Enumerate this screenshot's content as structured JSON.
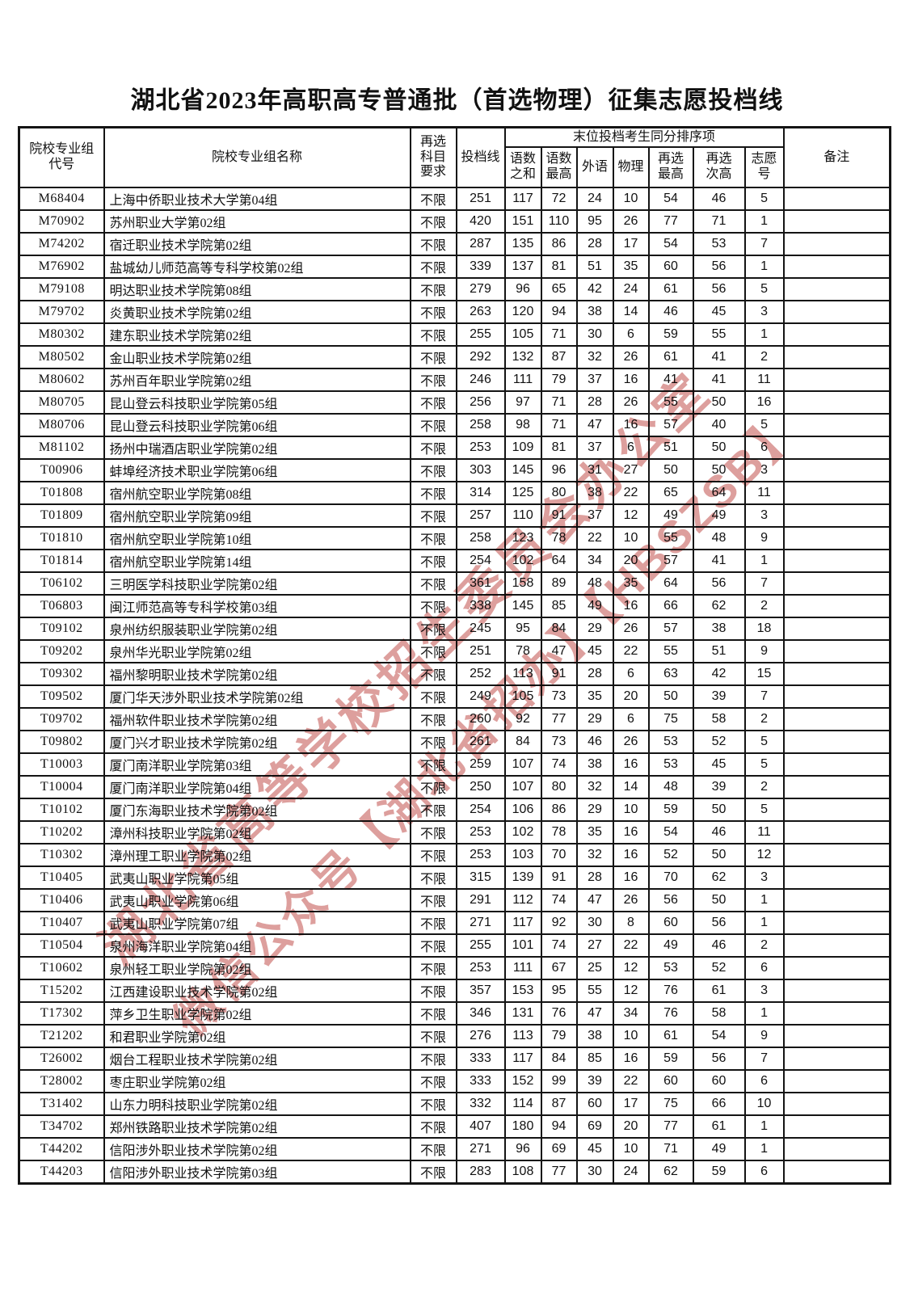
{
  "page": {
    "title": "湖北省2023年高职高专普通批（首选物理）征集志愿投档线"
  },
  "watermark": {
    "line1": "湖北省高等学校招生委员会办公室",
    "line2": "微信公众号【湖北省招办】【HBSZSB】",
    "color": "rgba(193,80,77,0.55)"
  },
  "table": {
    "headers": {
      "group_code": [
        "院校专业组",
        "代号"
      ],
      "group_name": "院校专业组名称",
      "subject_req": [
        "再选",
        "科目",
        "要求"
      ],
      "line": "投档线",
      "tiebreak_group": "末位投档考生同分排序项",
      "sum_cm": [
        "语数",
        "之和"
      ],
      "max_cm": [
        "语数",
        "最高"
      ],
      "foreign": "外语",
      "physics": "物理",
      "re_max": [
        "再选",
        "最高"
      ],
      "re_second": [
        "再选",
        "次高"
      ],
      "pref_no": [
        "志愿",
        "号"
      ],
      "remark": "备注"
    },
    "rows": [
      [
        "M68404",
        "上海中侨职业技术大学第04组",
        "不限",
        "251",
        "117",
        "72",
        "24",
        "10",
        "54",
        "46",
        "5",
        ""
      ],
      [
        "M70902",
        "苏州职业大学第02组",
        "不限",
        "420",
        "151",
        "110",
        "95",
        "26",
        "77",
        "71",
        "1",
        ""
      ],
      [
        "M74202",
        "宿迁职业技术学院第02组",
        "不限",
        "287",
        "135",
        "86",
        "28",
        "17",
        "54",
        "53",
        "7",
        ""
      ],
      [
        "M76902",
        "盐城幼儿师范高等专科学校第02组",
        "不限",
        "339",
        "137",
        "81",
        "51",
        "35",
        "60",
        "56",
        "1",
        ""
      ],
      [
        "M79108",
        "明达职业技术学院第08组",
        "不限",
        "279",
        "96",
        "65",
        "42",
        "24",
        "61",
        "56",
        "5",
        ""
      ],
      [
        "M79702",
        "炎黄职业技术学院第02组",
        "不限",
        "263",
        "120",
        "94",
        "38",
        "14",
        "46",
        "45",
        "3",
        ""
      ],
      [
        "M80302",
        "建东职业技术学院第02组",
        "不限",
        "255",
        "105",
        "71",
        "30",
        "6",
        "59",
        "55",
        "1",
        ""
      ],
      [
        "M80502",
        "金山职业技术学院第02组",
        "不限",
        "292",
        "132",
        "87",
        "32",
        "26",
        "61",
        "41",
        "2",
        ""
      ],
      [
        "M80602",
        "苏州百年职业学院第02组",
        "不限",
        "246",
        "111",
        "79",
        "37",
        "16",
        "41",
        "41",
        "11",
        ""
      ],
      [
        "M80705",
        "昆山登云科技职业学院第05组",
        "不限",
        "256",
        "97",
        "71",
        "28",
        "26",
        "55",
        "50",
        "16",
        ""
      ],
      [
        "M80706",
        "昆山登云科技职业学院第06组",
        "不限",
        "258",
        "98",
        "71",
        "47",
        "16",
        "57",
        "40",
        "5",
        ""
      ],
      [
        "M81102",
        "扬州中瑞酒店职业学院第02组",
        "不限",
        "253",
        "109",
        "81",
        "37",
        "6",
        "51",
        "50",
        "6",
        ""
      ],
      [
        "T00906",
        "蚌埠经济技术职业学院第06组",
        "不限",
        "303",
        "145",
        "96",
        "31",
        "27",
        "50",
        "50",
        "3",
        ""
      ],
      [
        "T01808",
        "宿州航空职业学院第08组",
        "不限",
        "314",
        "125",
        "80",
        "38",
        "22",
        "65",
        "64",
        "11",
        ""
      ],
      [
        "T01809",
        "宿州航空职业学院第09组",
        "不限",
        "257",
        "110",
        "91",
        "37",
        "12",
        "49",
        "49",
        "3",
        ""
      ],
      [
        "T01810",
        "宿州航空职业学院第10组",
        "不限",
        "258",
        "123",
        "78",
        "22",
        "10",
        "55",
        "48",
        "9",
        ""
      ],
      [
        "T01814",
        "宿州航空职业学院第14组",
        "不限",
        "254",
        "102",
        "64",
        "34",
        "20",
        "57",
        "41",
        "1",
        ""
      ],
      [
        "T06102",
        "三明医学科技职业学院第02组",
        "不限",
        "361",
        "158",
        "89",
        "48",
        "35",
        "64",
        "56",
        "7",
        ""
      ],
      [
        "T06803",
        "闽江师范高等专科学校第03组",
        "不限",
        "338",
        "145",
        "85",
        "49",
        "16",
        "66",
        "62",
        "2",
        ""
      ],
      [
        "T09102",
        "泉州纺织服装职业学院第02组",
        "不限",
        "245",
        "95",
        "84",
        "29",
        "26",
        "57",
        "38",
        "18",
        ""
      ],
      [
        "T09202",
        "泉州华光职业学院第02组",
        "不限",
        "251",
        "78",
        "47",
        "45",
        "22",
        "55",
        "51",
        "9",
        ""
      ],
      [
        "T09302",
        "福州黎明职业技术学院第02组",
        "不限",
        "252",
        "113",
        "91",
        "28",
        "6",
        "63",
        "42",
        "15",
        ""
      ],
      [
        "T09502",
        "厦门华天涉外职业技术学院第02组",
        "不限",
        "249",
        "105",
        "73",
        "35",
        "20",
        "50",
        "39",
        "7",
        ""
      ],
      [
        "T09702",
        "福州软件职业技术学院第02组",
        "不限",
        "260",
        "92",
        "77",
        "29",
        "6",
        "75",
        "58",
        "2",
        ""
      ],
      [
        "T09802",
        "厦门兴才职业技术学院第02组",
        "不限",
        "261",
        "84",
        "73",
        "46",
        "26",
        "53",
        "52",
        "5",
        ""
      ],
      [
        "T10003",
        "厦门南洋职业学院第03组",
        "不限",
        "259",
        "107",
        "74",
        "38",
        "16",
        "53",
        "45",
        "5",
        ""
      ],
      [
        "T10004",
        "厦门南洋职业学院第04组",
        "不限",
        "250",
        "107",
        "80",
        "32",
        "14",
        "48",
        "39",
        "2",
        ""
      ],
      [
        "T10102",
        "厦门东海职业技术学院第02组",
        "不限",
        "254",
        "106",
        "86",
        "29",
        "10",
        "59",
        "50",
        "5",
        ""
      ],
      [
        "T10202",
        "漳州科技职业学院第02组",
        "不限",
        "253",
        "102",
        "78",
        "35",
        "16",
        "54",
        "46",
        "11",
        ""
      ],
      [
        "T10302",
        "漳州理工职业学院第02组",
        "不限",
        "253",
        "103",
        "70",
        "32",
        "16",
        "52",
        "50",
        "12",
        ""
      ],
      [
        "T10405",
        "武夷山职业学院第05组",
        "不限",
        "315",
        "139",
        "91",
        "28",
        "16",
        "70",
        "62",
        "3",
        ""
      ],
      [
        "T10406",
        "武夷山职业学院第06组",
        "不限",
        "291",
        "112",
        "74",
        "47",
        "26",
        "56",
        "50",
        "1",
        ""
      ],
      [
        "T10407",
        "武夷山职业学院第07组",
        "不限",
        "271",
        "117",
        "92",
        "30",
        "8",
        "60",
        "56",
        "1",
        ""
      ],
      [
        "T10504",
        "泉州海洋职业学院第04组",
        "不限",
        "255",
        "101",
        "74",
        "27",
        "22",
        "49",
        "46",
        "2",
        ""
      ],
      [
        "T10602",
        "泉州轻工职业学院第02组",
        "不限",
        "253",
        "111",
        "67",
        "25",
        "12",
        "53",
        "52",
        "6",
        ""
      ],
      [
        "T15202",
        "江西建设职业技术学院第02组",
        "不限",
        "357",
        "153",
        "95",
        "55",
        "12",
        "76",
        "61",
        "3",
        ""
      ],
      [
        "T17302",
        "萍乡卫生职业学院第02组",
        "不限",
        "346",
        "131",
        "76",
        "47",
        "34",
        "76",
        "58",
        "1",
        ""
      ],
      [
        "T21202",
        "和君职业学院第02组",
        "不限",
        "276",
        "113",
        "79",
        "38",
        "10",
        "61",
        "54",
        "9",
        ""
      ],
      [
        "T26002",
        "烟台工程职业技术学院第02组",
        "不限",
        "333",
        "117",
        "84",
        "85",
        "16",
        "59",
        "56",
        "7",
        ""
      ],
      [
        "T28002",
        "枣庄职业学院第02组",
        "不限",
        "333",
        "152",
        "99",
        "39",
        "22",
        "60",
        "60",
        "6",
        ""
      ],
      [
        "T31402",
        "山东力明科技职业学院第02组",
        "不限",
        "332",
        "114",
        "87",
        "60",
        "17",
        "75",
        "66",
        "10",
        ""
      ],
      [
        "T34702",
        "郑州铁路职业技术学院第02组",
        "不限",
        "407",
        "180",
        "94",
        "69",
        "20",
        "77",
        "61",
        "1",
        ""
      ],
      [
        "T44202",
        "信阳涉外职业技术学院第02组",
        "不限",
        "271",
        "96",
        "69",
        "45",
        "10",
        "71",
        "49",
        "1",
        ""
      ],
      [
        "T44203",
        "信阳涉外职业技术学院第03组",
        "不限",
        "283",
        "108",
        "77",
        "30",
        "24",
        "62",
        "59",
        "6",
        ""
      ]
    ]
  }
}
